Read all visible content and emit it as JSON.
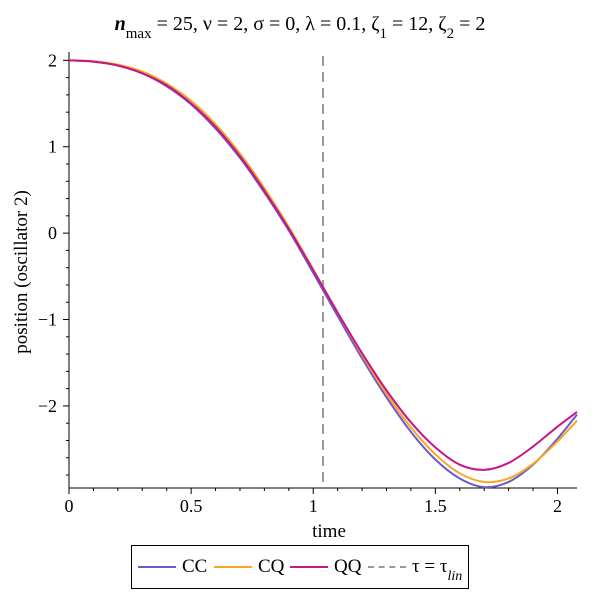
{
  "chart_data": {
    "type": "line",
    "title_parts": {
      "n": "n",
      "n_sub": "max",
      "rest1": " = 25, ν = 2, σ = 0, λ = 0.1, ζ",
      "z1_sub": "1",
      "rest2": " = 12, ζ",
      "z2_sub": "2",
      "rest3": " = 2"
    },
    "xlabel": "time",
    "ylabel": "position (oscillator 2)",
    "xlim": [
      0,
      2.08
    ],
    "ylim": [
      -2.95,
      2.05
    ],
    "x_ticks": [
      0,
      0.5,
      1,
      1.5,
      2
    ],
    "x_tick_labels": [
      "0",
      "0.5",
      "1",
      "1.5",
      "2"
    ],
    "y_ticks": [
      2,
      1,
      0,
      -1,
      -2
    ],
    "y_tick_labels": [
      "2",
      "1",
      "0",
      "−1",
      "−2"
    ],
    "grid": false,
    "legend_position": "bottom",
    "vline": {
      "x": 1.04,
      "label": "τ = τ",
      "label_sub": "lin",
      "color": "#999999"
    },
    "series": [
      {
        "name": "CC",
        "color": "#6a5acd",
        "x": [
          0,
          0.1,
          0.2,
          0.3,
          0.4,
          0.5,
          0.6,
          0.7,
          0.8,
          0.9,
          1.0,
          1.1,
          1.2,
          1.3,
          1.4,
          1.5,
          1.6,
          1.7,
          1.8,
          1.9,
          2.0,
          2.08
        ],
        "y": [
          2.0,
          1.985,
          1.94,
          1.85,
          1.7,
          1.49,
          1.21,
          0.87,
          0.47,
          0.03,
          -0.46,
          -0.96,
          -1.45,
          -1.9,
          -2.3,
          -2.62,
          -2.84,
          -2.94,
          -2.88,
          -2.68,
          -2.38,
          -2.1
        ]
      },
      {
        "name": "CQ",
        "color": "#f5a623",
        "x": [
          0,
          0.1,
          0.2,
          0.3,
          0.4,
          0.5,
          0.6,
          0.7,
          0.8,
          0.9,
          1.0,
          1.1,
          1.2,
          1.3,
          1.4,
          1.5,
          1.6,
          1.7,
          1.8,
          1.9,
          2.0,
          2.08
        ],
        "y": [
          2.0,
          1.99,
          1.95,
          1.87,
          1.73,
          1.53,
          1.26,
          0.92,
          0.52,
          0.07,
          -0.42,
          -0.92,
          -1.41,
          -1.86,
          -2.25,
          -2.56,
          -2.78,
          -2.88,
          -2.84,
          -2.67,
          -2.41,
          -2.17
        ]
      },
      {
        "name": "QQ",
        "color": "#c71585",
        "x": [
          0,
          0.1,
          0.2,
          0.3,
          0.4,
          0.5,
          0.6,
          0.7,
          0.8,
          0.9,
          1.0,
          1.1,
          1.2,
          1.3,
          1.4,
          1.5,
          1.6,
          1.7,
          1.8,
          1.9,
          2.0,
          2.08
        ],
        "y": [
          2.0,
          1.985,
          1.94,
          1.85,
          1.71,
          1.5,
          1.23,
          0.89,
          0.49,
          0.05,
          -0.43,
          -0.92,
          -1.39,
          -1.82,
          -2.19,
          -2.48,
          -2.68,
          -2.74,
          -2.66,
          -2.47,
          -2.24,
          -2.07
        ]
      }
    ]
  }
}
